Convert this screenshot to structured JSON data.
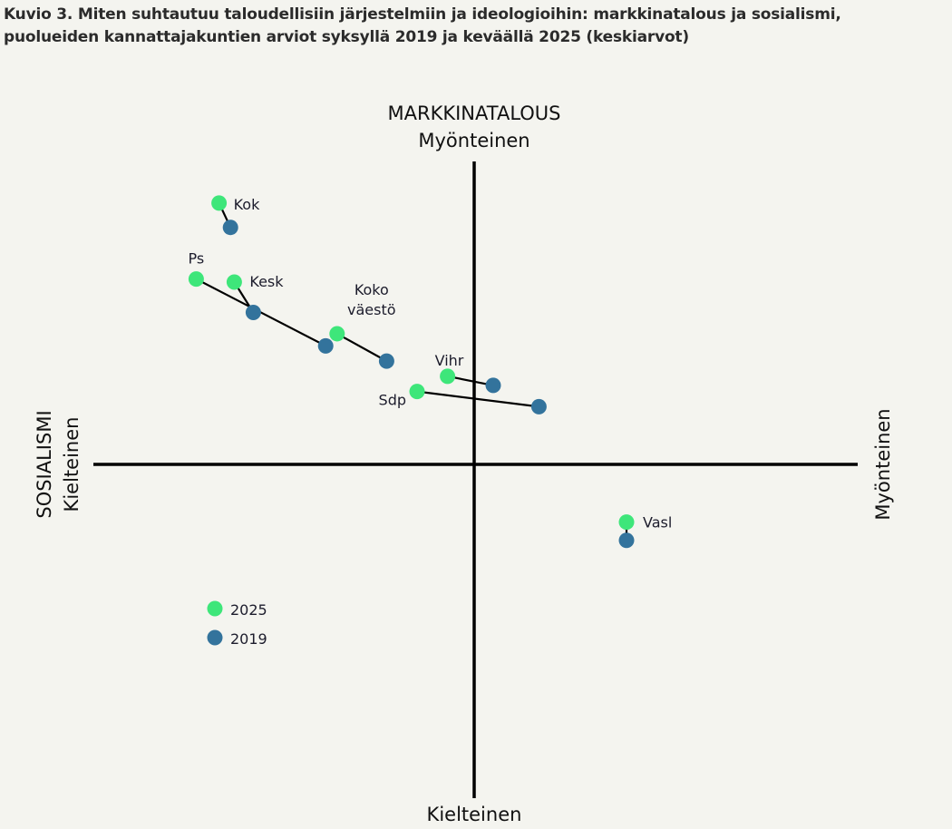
{
  "title_line1": "Kuvio 3. Miten suhtautuu taloudellisiin järjestelmiin ja ideologioihin: markkinatalous ja sosialismi,",
  "title_line2": "puolueiden kannattajakuntien arviot syksyllä 2019 ja keväällä 2025 (keskiarvot)",
  "chart_data": {
    "type": "scatter",
    "title": "Kuvio 3. Miten suhtautuu taloudellisiin järjestelmiin ja ideologioihin: markkinatalous ja sosialismi, puolueiden kannattajakuntien arviot syksyllä 2019 ja keväällä 2025 (keskiarvot)",
    "axes": {
      "y_name": "MARKKINATALOUS",
      "y_top": "Myönteinen",
      "y_bottom": "Kielteinen",
      "x_name": "SOSIALISMI",
      "x_left": "Kielteinen",
      "x_right": "Myönteinen"
    },
    "xlim": [
      -1,
      1
    ],
    "ylim": [
      -1,
      1
    ],
    "legend": {
      "placement": "bottom-left",
      "items": [
        {
          "label": "2025",
          "color": "#3ee67a"
        },
        {
          "label": "2019",
          "color": "#33739c"
        }
      ]
    },
    "series_colors": {
      "2025": "#3ee67a",
      "2019": "#33739c"
    },
    "points": [
      {
        "label": "Kok",
        "y2025": [
          -0.67,
          0.86
        ],
        "y2019": [
          -0.64,
          0.78
        ]
      },
      {
        "label": "Ps",
        "y2025": [
          -0.73,
          0.61
        ],
        "y2019": [
          -0.39,
          0.39
        ]
      },
      {
        "label": "Kesk",
        "y2025": [
          -0.63,
          0.6
        ],
        "y2019": [
          -0.58,
          0.5
        ]
      },
      {
        "label": "Koko väestö",
        "y2025": [
          -0.36,
          0.43
        ],
        "y2019": [
          -0.23,
          0.34
        ]
      },
      {
        "label": "Vihr",
        "y2025": [
          -0.07,
          0.29
        ],
        "y2019": [
          0.05,
          0.26
        ]
      },
      {
        "label": "Sdp",
        "y2025": [
          -0.15,
          0.24
        ],
        "y2019": [
          0.17,
          0.19
        ]
      },
      {
        "label": "Vasl",
        "y2025": [
          0.4,
          -0.19
        ],
        "y2019": [
          0.4,
          -0.25
        ]
      }
    ]
  }
}
